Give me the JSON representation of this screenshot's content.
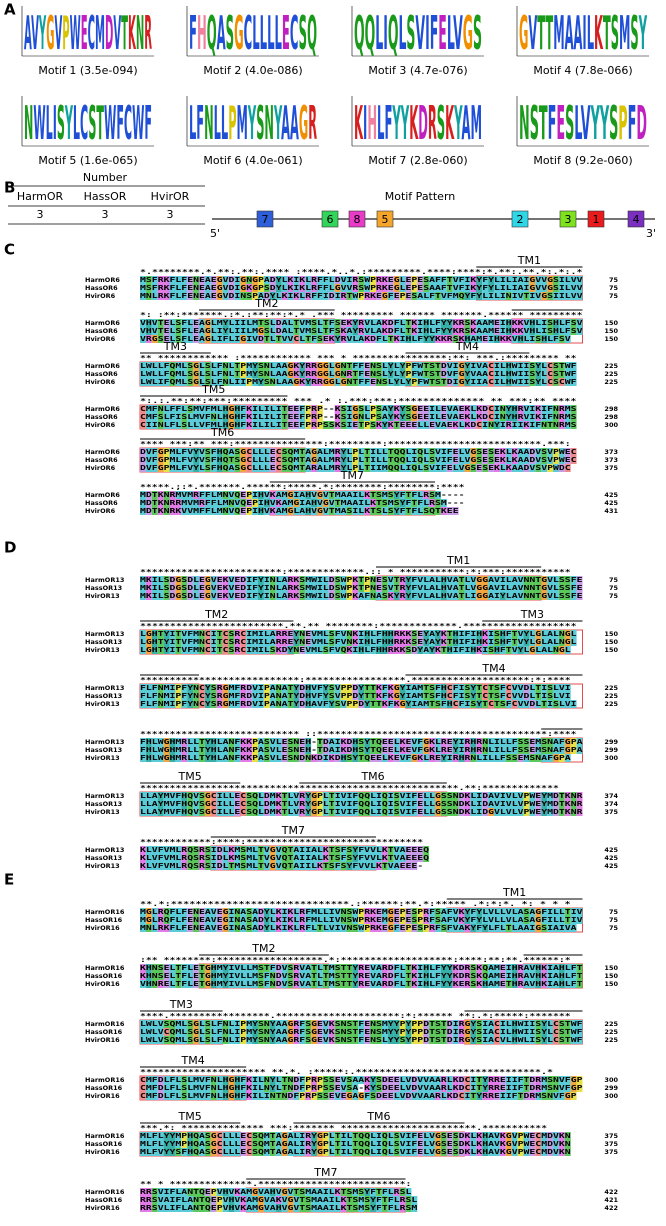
{
  "panelA": {
    "label": "A",
    "motifs": [
      {
        "logo": "AVYGVPWECMDVTKNR",
        "caption": "Motif 1 (3.5e-094)"
      },
      {
        "logo": "FHQASGCLLLLECSQ",
        "caption": "Motif 2 (4.0e-086)"
      },
      {
        "logo": "QQLIQLSVIFELVGS",
        "caption": "Motif 3 (4.7e-076)"
      },
      {
        "logo": "GVTTMAAILKTSMSY",
        "caption": "Motif 4 (7.8e-066)"
      },
      {
        "logo": "NWLISYLCSTWFCWF",
        "caption": "Motif 5 (1.6e-065)"
      },
      {
        "logo": "LFNLLPMYSNYAAGR",
        "caption": "Motif 6 (4.0e-061)"
      },
      {
        "logo": "KIHLFYYKDRSKYAM",
        "caption": "Motif 7 (2.8e-060)"
      },
      {
        "logo": "NSTFESLVYYSPFD",
        "caption": "Motif 8 (9.2e-060)"
      }
    ]
  },
  "panelB": {
    "label": "B",
    "number_header": "Number",
    "columns": [
      "HarmOR",
      "HassOR",
      "HvirOR"
    ],
    "counts": [
      3,
      3,
      3
    ],
    "pattern_header": "Motif Pattern",
    "five_prime": "5'",
    "three_prime": "3'",
    "pattern": [
      "7",
      "6",
      "8",
      "5",
      "2",
      "3",
      "1",
      "4"
    ]
  },
  "panelC": {
    "label": "C",
    "blocks": [
      {
        "tm": [
          "TM1"
        ],
        "conservation": "*.********.*.**:.**:.****  :****.*..*.:*********.****:****:*.**:.**.*:.*:.*",
        "rows": [
          {
            "name": "HarmOR6",
            "seq": "MSFRKFLFENEAEGVDIGNGPADYLKIKLRFFLDVIRSWPRKEGLEPESAFFTVFIKYFYLILIAIGVVGSILVV",
            "end": 75
          },
          {
            "name": "HassOR6",
            "seq": "MSFRKFLFENEAEGVDIGKGPSDYLKIKLRFFLGVVRSWPRKEGLEPESAAFTVFIKYFYLILIAIGVVGSILVV",
            "end": 75
          },
          {
            "name": "HvirOR6",
            "seq": "MNLRKFLFENEAEGVDINSPADYLKIKLRFFIDIRTWPRKEGFEPESALFTVFMQYFYLILINIVTIVGSIILVV",
            "end": 75
          }
        ]
      },
      {
        "tm": [
          "TM2"
        ],
        "conservation": "*: :**:*******.:*.:**:**:*.* .*** ********* ****** *******.****** *********",
        "rows": [
          {
            "name": "HarmOR6",
            "seq": "VHVTELSFLEAGLMYLIILMTSLDALTVMSLTFSEKYRVLAKDFLTKIHLFYYKRSKAAMEIHKKVHLISHLFSV",
            "end": 150
          },
          {
            "name": "HassOR6",
            "seq": "VHVTELSFLEAGLIYLIILMGSLDALTVMSLTFSKAYRVLAKDFLTKIHLFYYKRSKAAMEIHKKVHLISHLFSV",
            "end": 150
          },
          {
            "name": "HvirOR6",
            "seq": "VRGSELSFLEAGLIFLIGIVDTLTVVCLTFSEKYRVLAKDFLTKIHLFYYKKRSKHAMEIHKKVHLISHLFSV",
            "end": 150
          }
        ]
      },
      {
        "tm": [
          "TM3",
          "TM4"
        ],
        "conservation": "** ************ :************ *** * ****************:**: ***.:********* **",
        "rows": [
          {
            "name": "HarmOR6",
            "seq": "LWLLFQMLSGLSLFNLTPMYSNLAAGKYRRGGLGNTFFENSLYLYPFWTSTDVIGYIVACILHWIISYLCSTWF",
            "end": 225
          },
          {
            "name": "HassOR6",
            "seq": "LWLLFQMLSGLSLFNLTPMYSNLAAGKYRRGGLGNRTFENSLYLYPFWTSTDVFGYVAACILHWIISYLCSTWF",
            "end": 225
          },
          {
            "name": "HvirOR6",
            "seq": "LWLIFQMLSGLSLFNLIIPMYSNLAAGKYRRGGLGNTFFENSLYLYPFWTSTDIGYIIACILHWIISYLCSCWF",
            "end": 225
          }
        ]
      },
      {
        "tm": [
          "TM5"
        ],
        "conservation": "*:.:.**:**:***:*********    *** .* :.***:***:************** ** ***:** ****",
        "rows": [
          {
            "name": "HarmOR6",
            "seq": "CMFNLFFLSMVFMLHGHFKILILITEEFPRP--KSIGSLPSAYKYSGEEILEVAEKLKDCINYHRVIKIFNRMS",
            "end": 298
          },
          {
            "name": "HassOR6",
            "seq": "CMFSLFISLMVFNLHGHFKILILITEEFPRP--KSIGNLPSAYKYSGEEILEVAEKLKDCINYHRVIKIFNRMS",
            "end": 298
          },
          {
            "name": "HvirOR6",
            "seq": "CIINLFLSLLVFMLHGHFKILILITEEFPRPSSKSIETPSKYKTEEELLEVAEKLKDCINYIRIIKIFNTNRMS",
            "end": 300
          }
        ]
      },
      {
        "tm": [
          "TM6"
        ],
        "conservation": "**** ***:** ***:***************:*********:**************************.***:",
        "rows": [
          {
            "name": "HarmOR6",
            "seq": "DVFGPMLFVYVSFHQASGCLLLECSQMTAGALMRYLPLTILLTQQLIQLSVIFELVGSESEKLKAADVSVPWEC",
            "end": 373
          },
          {
            "name": "HassOR6",
            "seq": "DVFGPMLFVYVSFHQTSGCLLLECSQMTAGALMRYLPLTILLTQQLIQLSVIFELVGSESEKLKAADVSVPWEC",
            "end": 373
          },
          {
            "name": "HvirOR6",
            "seq": "DVFGPMLFVYLSFHQASGCLLLECSQMTARALMRYLPLTIIMQQLIQLSVIFELVGSESEKLKAADVSVPWDC",
            "end": 375
          }
        ]
      },
      {
        "tm": [
          "TM7"
        ],
        "conservation": "*****.;:*.*******.******:*****.*:********:********:****",
        "rows": [
          {
            "name": "HarmOR6",
            "seq": "MDTKNRMVMRFFLMNVQEPIHVKAMGIAHVGVTMAAILKTSMSYFTFLRSM----",
            "end": 425
          },
          {
            "name": "HassOR6",
            "seq": "MDTKNRRMVMRFFLMNVQEPIHVKAMGIAHVGVTMAAILKTSMSYFTFLRSM---",
            "end": 425
          },
          {
            "name": "HvirOR6",
            "seq": "MDTKNRKVVMFFLMNVQEPIHVKAMGLAHVGVTMASILKTSLSYFTFLSQTKEE",
            "end": 431
          }
        ]
      }
    ]
  },
  "panelD": {
    "label": "D",
    "blocks": [
      {
        "tm": [
          "TM1"
        ],
        "conservation": "************************:*************.:: * ***********:*:***:***********",
        "rows": [
          {
            "name": "HarmOR13",
            "seq": "MKILSDGSDLEGVEKVEDIFYINLARKSMWILDSWPKTPNESVTRYFVLALHVATLVGGAVILAVNNTGVLSSFE",
            "end": 75
          },
          {
            "name": "HassOR13",
            "seq": "MKILSDGSDLEGVEKVEDIFYINLARKSMWILDSWPKTPNESVTRYFVLALHVATLVGGAVILAVNNTGVLSSFE",
            "end": 75
          },
          {
            "name": "HvirOR13",
            "seq": "MKILSDGSDLEGVEKVEDIFYINLARKSMWILDSWPKAFNASKYRYFVLALHVATLIGGAIYLAVNNTGVLSSFE",
            "end": 75
          }
        ]
      },
      {
        "tm": [
          "TM2",
          "TM3"
        ],
        "conservation": "************************.**.**  ********:*************.*******************",
        "rows": [
          {
            "name": "HarmOR13",
            "seq": "LGHTYITVFMNCITCSRCIMILARREYNEVMLSFVNKIHLFHHRKKSEYAYKTHIFIHKISHFTVYLGLALNGL",
            "end": 150
          },
          {
            "name": "HassOR13",
            "seq": "LGHTYITVFMNCITCSRCIMILARREYNEVMLSFVNKIHLFHHRKKSEYAYKTHIFIHKISHFTVYLGLALNGL",
            "end": 150
          },
          {
            "name": "HvirOR13",
            "seq": "LGHTYITVFMNCITCSRCIMILSKDYNEVMLSFVQKIHLFHHRKKSDYAYKTHIFIHKISHFTVYLGLALNGL",
            "end": 150
          }
        ]
      },
      {
        "tm": [
          "TM4"
        ],
        "conservation": "***************************:*****************.********************:*:****",
        "rows": [
          {
            "name": "HarmOR13",
            "seq": "FLFNMIPFYNCYSRGMFRDVIPANATYDHVFYSVPPDYTTKFKGYIAMTSFHCFISYTCTSFCVVDLTISLVI",
            "end": 225
          },
          {
            "name": "HassOR13",
            "seq": "FLFNMIPFYNCYSRGMFRDVIPANATYDHVFYSVPPDYTTKFKGYIAMTSFHCFISYTCTSFCVVDLTISLVI",
            "end": 225
          },
          {
            "name": "HvirOR13",
            "seq": "FLFNMIPFYNCYSRGMFRDVIPANATYDHAVFYSVPPDYTTKFKGYIAMTSFHCFISYTCTSFCVVDLTISLVI",
            "end": 225
          }
        ]
      },
      {
        "tm": [],
        "conservation": "*************************** ::***************************************:****",
        "rows": [
          {
            "name": "HarmOR13",
            "seq": "FHLWGHMRLLTYHLANFKKPASVLESNEH-TDAIKDHSYTQEELKEVFGKLREYIRHRNLILLFSSEMSNAFGPA",
            "end": 299
          },
          {
            "name": "HassOR13",
            "seq": "FHLWGHMRLLTYHLANFKKPASVLESNEH-TDAIKDHSYTQEELKEVFGKLREYIRHRNLILLFSSEMSNAFGPA",
            "end": 299
          },
          {
            "name": "HvirOR13",
            "seq": "FHLWGHMRLLTYHLANFKKPASVLESNDNKDIKDHSYTQEELKEVFGKLREYIRHRNLILLFSSEMSNAFGPA",
            "end": 300
          }
        ]
      },
      {
        "tm": [
          "TM5",
          "TM6"
        ],
        "conservation": "******************************************************.**:*************",
        "rows": [
          {
            "name": "HarmOR13",
            "seq": "LLAYMVFHQVSGCILLECSQLDMKTLVRYGPLTIVIFQQLIQISVIFELLGSSNDKLIDAVIVLVPWEYMDTKNR",
            "end": 374
          },
          {
            "name": "HassOR13",
            "seq": "LLAYMVFHQVSGCILLECSQLDMKTLVRYGPLTIVIFQQLIQISVIFELLGSSNDKLIDAVIVLVPWEYMDTKNR",
            "end": 374
          },
          {
            "name": "HvirOR13",
            "seq": "LLAYMVFHQVSGCILLECSQLDMKTLVRYGPLTIVIFQQLIQISVIFELLGSSNDKLIDGVLVLVPWEYMDTKNR",
            "end": 375
          }
        ]
      },
      {
        "tm": [
          "TM7"
        ],
        "conservation": "************:****:******************************",
        "rows": [
          {
            "name": "HarmOR13",
            "seq": "KLVFVMLRQSRSIDLKMSMLTVGVQTAIIALKTSFSYFVVLKTVAEEEQ",
            "end": 425
          },
          {
            "name": "HassOR13",
            "seq": "KLVFVMLRQSRSIDLKMSMLTVGVQTAIIALKTSFSYFVVLKTVAEEEQ",
            "end": 425
          },
          {
            "name": "HvirOR13",
            "seq": "KLVFVMLRQSRSIDLTMSMLTVGVQTAIILKTSFSYFVVLKTVAEEE-",
            "end": 425
          }
        ]
      }
    ]
  },
  "panelE": {
    "label": "E",
    "blocks": [
      {
        "tm": [
          "TM1"
        ],
        "conservation": "**.*:*****************************.:******:**.*:***** .*:*:*. *:  *  *  *",
        "rows": [
          {
            "name": "HarmOR16",
            "seq": "MGLRQFLFENEAVEGINASADYLKIKLRFMLLIVNSWPRKEMGEPESPRFSAFVKYFYLVLLVLASAGFILLTIV",
            "end": 75
          },
          {
            "name": "HassOR16",
            "seq": "MGLRQFLFENEAVEGINASADYLKIKLRFMLLIVNSWPRKEMGEPESPRFSAFVKYFYLVLLVLASAGFILLTIV",
            "end": 75
          },
          {
            "name": "HvirOR16",
            "seq": "MNLRKFLFENEAVEGINASADYLKIKLRFLTLVIVNSWPRKEGFEPESPRFSFVAKYFYLFLTLAAIGSIAIVA",
            "end": 75
          }
        ]
      },
      {
        "tm": [
          "TM2"
        ],
        "conservation": ":** ********:******************.*:*******************:****:**:**.******:*",
        "rows": [
          {
            "name": "HarmOR16",
            "seq": "KHNSELTFLETGHMYIVLLMSTFDVSRVATLTMSTTYREVARDFLTKIHLFYYKDRSKQAMEIHRAVHKIAHLFT",
            "end": 150
          },
          {
            "name": "HassOR16",
            "seq": "KHNSELTFLETGHMYIVLLMSFNDVSRVATLTMSTTYREVARDFLTKIHLFYYKDRSKQAMEIHRAVHKIAHLFT",
            "end": 150
          },
          {
            "name": "HvirOR16",
            "seq": "VHNRELTFLETGHMYIVLLMSFNDVSRVATLTMSTTYREVARDFLTKIHLFYYKERSKHAMETHRAVHKIAHLFT",
            "end": 150
          }
        ]
      },
      {
        "tm": [
          "TM3"
        ],
        "conservation": "****.*****************.*********************:*:****** **:.*:*****:*******",
        "rows": [
          {
            "name": "HarmOR16",
            "seq": "LWLVSQMLSGLSLFNLIPMYSNYAAGRFSGEVKSNSTFENSMYYPYPPDTSTDIRGYSIACILHWIISYLCSTWF",
            "end": 225
          },
          {
            "name": "HassOR16",
            "seq": "LWLVCQMLSGLSLFNLIPMYSNYAAGRFSGEVKSNSTFENSMYYPYPPDTSTDIRGYSIACILHWIISYLCSTWF",
            "end": 225
          },
          {
            "name": "HvirOR16",
            "seq": "LWLVSQMLSGLSLFNLIPMYSNYAAGRFSGEVKSNSTFENSLYYSYPPDTSTDIRGYSIACVLHWLISYLCSTWF",
            "end": 225
          }
        ]
      },
      {
        "tm": [
          "TM4"
        ],
        "conservation": "********************* **.*.  :*****:.*******************************.*",
        "rows": [
          {
            "name": "HarmOR16",
            "seq": "CMFDLFLSLMVFNLHGHFKILNYLTNDFPRPSSEVSAAKYSDEELVDVVAARLKDCITYRREIIFTDRMSNVFGP",
            "end": 300
          },
          {
            "name": "HassOR16",
            "seq": "CMFDLFLSLMVFNLHGHFKILNYLTNDFPRPSSEVSA-KYSDEELVDVVAARLKDCITYRREIIFTDRMSNVFGP",
            "end": 299
          },
          {
            "name": "HvirOR16",
            "seq": "CMFDLFLSLMVFNLHGHFKILINTNDFPRPSSEVEGAGFSDEELVDVVAARLKDCITYRREIIFTDRMSNVFGP",
            "end": 300
          }
        ]
      },
      {
        "tm": [
          "TM5",
          "TM6"
        ],
        "conservation": "***.*: ************** ***:******* ***********************.***********",
        "rows": [
          {
            "name": "HarmOR16",
            "seq": "MLFLYYMPHQASGCLLLECSQMTAGALIRYGPLTILTQQLIQLSVIFELVGSESDKLKHAVKGVPWECMDVKN",
            "end": 375
          },
          {
            "name": "HassOR16",
            "seq": "MLFLYYMPHQASGCLLLECSQMTAGALIRYGPLTILTQQLIQLSVIFELVGSESDKLKHAVKGVPWECMDVKN",
            "end": 375
          },
          {
            "name": "HvirOR16",
            "seq": "MLFVYYSFHQASGCLLLECSQMTAGALIRYGPLTILTQQLIQLSVIFELVGSESDKLKHAVKGVPWECMDVKN",
            "end": 375
          }
        ]
      },
      {
        "tm": [
          "TM7"
        ],
        "conservation": "** * **************.*************************:",
        "rows": [
          {
            "name": "HarmOR16",
            "seq": "RRSVIFLANTQEPVHVKAMGVAHVGVTSMAAILKTSMSYFTFLRSL",
            "end": 422
          },
          {
            "name": "HassOR16",
            "seq": "RRSVAIFLANTQEPVHVKAMGVAKVGVTSMAAILKTSMSYFTFLRSL",
            "end": 421
          },
          {
            "name": "HvirOR16",
            "seq": "RRSVLIFLANTQEPVHVKAMGVAHVGVTSMAAILKTSMSYFTFLRSM",
            "end": 422
          }
        ]
      }
    ]
  }
}
